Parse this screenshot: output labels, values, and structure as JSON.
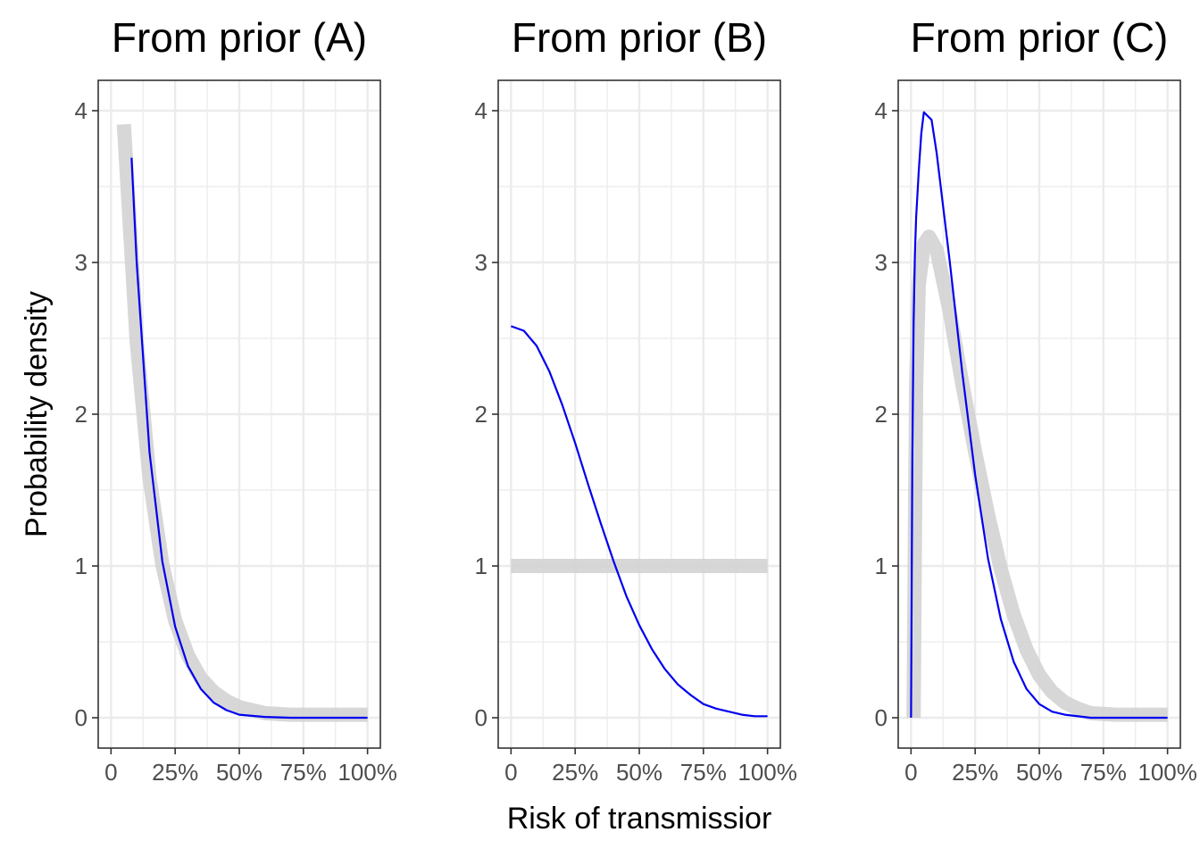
{
  "chart_data": [
    {
      "type": "line",
      "title": "From prior (A)",
      "xlim": [
        -0.05,
        1.05
      ],
      "ylim": [
        -0.2,
        4.2
      ],
      "x_ticks": [
        0,
        0.25,
        0.5,
        0.75,
        1.0
      ],
      "x_tick_labels": [
        "0",
        "25%",
        "50%",
        "75%",
        "100%"
      ],
      "y_ticks": [
        0,
        1,
        2,
        3,
        4
      ],
      "y_tick_labels": [
        "0",
        "1",
        "2",
        "3",
        "4"
      ],
      "grid": true,
      "series": [
        {
          "color": "#d3d3d3",
          "x": [
            0.05,
            0.1,
            0.15,
            0.2,
            0.25,
            0.3,
            0.35,
            0.4,
            0.45,
            0.5,
            0.55,
            0.6,
            0.7,
            0.8,
            0.9,
            1.0
          ],
          "y": [
            3.91,
            2.48,
            1.58,
            1.01,
            0.64,
            0.41,
            0.26,
            0.17,
            0.11,
            0.07,
            0.05,
            0.03,
            0.02,
            0.02,
            0.02,
            0.02
          ]
        },
        {
          "color": "#0000ee",
          "x": [
            0.08,
            0.1,
            0.15,
            0.2,
            0.25,
            0.3,
            0.35,
            0.4,
            0.45,
            0.5,
            0.6,
            0.7,
            0.8,
            0.9,
            1.0
          ],
          "y": [
            3.69,
            3.0,
            1.75,
            1.03,
            0.6,
            0.34,
            0.19,
            0.1,
            0.05,
            0.02,
            0.005,
            0.0,
            0.0,
            0.0,
            0.0
          ]
        }
      ]
    },
    {
      "type": "line",
      "title": "From prior (B)",
      "xlabel": "Risk of transmissior",
      "xlim": [
        -0.05,
        1.05
      ],
      "ylim": [
        -0.2,
        4.2
      ],
      "x_ticks": [
        0,
        0.25,
        0.5,
        0.75,
        1.0
      ],
      "x_tick_labels": [
        "0",
        "25%",
        "50%",
        "75%",
        "100%"
      ],
      "y_ticks": [
        0,
        1,
        2,
        3,
        4
      ],
      "y_tick_labels": [
        "0",
        "1",
        "2",
        "3",
        "4"
      ],
      "grid": true,
      "series": [
        {
          "color": "#d3d3d3",
          "x": [
            0.0,
            1.0
          ],
          "y": [
            1.0,
            1.0
          ]
        },
        {
          "color": "#0000ee",
          "x": [
            0.0,
            0.05,
            0.1,
            0.15,
            0.2,
            0.25,
            0.3,
            0.35,
            0.4,
            0.45,
            0.5,
            0.55,
            0.6,
            0.65,
            0.7,
            0.75,
            0.8,
            0.85,
            0.9,
            0.95,
            1.0
          ],
          "y": [
            2.58,
            2.55,
            2.45,
            2.28,
            2.06,
            1.81,
            1.54,
            1.28,
            1.03,
            0.8,
            0.61,
            0.45,
            0.32,
            0.22,
            0.15,
            0.09,
            0.06,
            0.04,
            0.02,
            0.01,
            0.01
          ]
        }
      ]
    },
    {
      "type": "line",
      "title": "From prior (C)",
      "xlim": [
        -0.05,
        1.05
      ],
      "ylim": [
        -0.2,
        4.2
      ],
      "x_ticks": [
        0,
        0.25,
        0.5,
        0.75,
        1.0
      ],
      "x_tick_labels": [
        "0",
        "25%",
        "50%",
        "75%",
        "100%"
      ],
      "y_ticks": [
        0,
        1,
        2,
        3,
        4
      ],
      "y_tick_labels": [
        "0",
        "1",
        "2",
        "3",
        "4"
      ],
      "grid": true,
      "series": [
        {
          "color": "#d3d3d3",
          "x": [
            0.01,
            0.015,
            0.02,
            0.03,
            0.05,
            0.07,
            0.1,
            0.15,
            0.2,
            0.25,
            0.3,
            0.35,
            0.4,
            0.45,
            0.5,
            0.55,
            0.6,
            0.65,
            0.7,
            0.8,
            0.9,
            1.0
          ],
          "y": [
            0.0,
            1.2,
            2.2,
            2.85,
            3.12,
            3.17,
            3.08,
            2.68,
            2.2,
            1.75,
            1.34,
            0.98,
            0.68,
            0.45,
            0.28,
            0.17,
            0.1,
            0.06,
            0.03,
            0.02,
            0.02,
            0.02
          ]
        },
        {
          "color": "#0000ee",
          "x": [
            0.0,
            0.005,
            0.01,
            0.015,
            0.02,
            0.03,
            0.04,
            0.05,
            0.08,
            0.1,
            0.15,
            0.2,
            0.25,
            0.3,
            0.35,
            0.4,
            0.45,
            0.5,
            0.55,
            0.6,
            0.7,
            0.8,
            0.9,
            1.0
          ],
          "y": [
            0.0,
            1.7,
            2.6,
            3.05,
            3.3,
            3.6,
            3.85,
            3.99,
            3.94,
            3.72,
            3.02,
            2.27,
            1.6,
            1.05,
            0.65,
            0.37,
            0.19,
            0.09,
            0.04,
            0.02,
            0.0,
            0.0,
            0.0,
            0.0
          ]
        }
      ]
    }
  ],
  "ylabel": "Probability density"
}
